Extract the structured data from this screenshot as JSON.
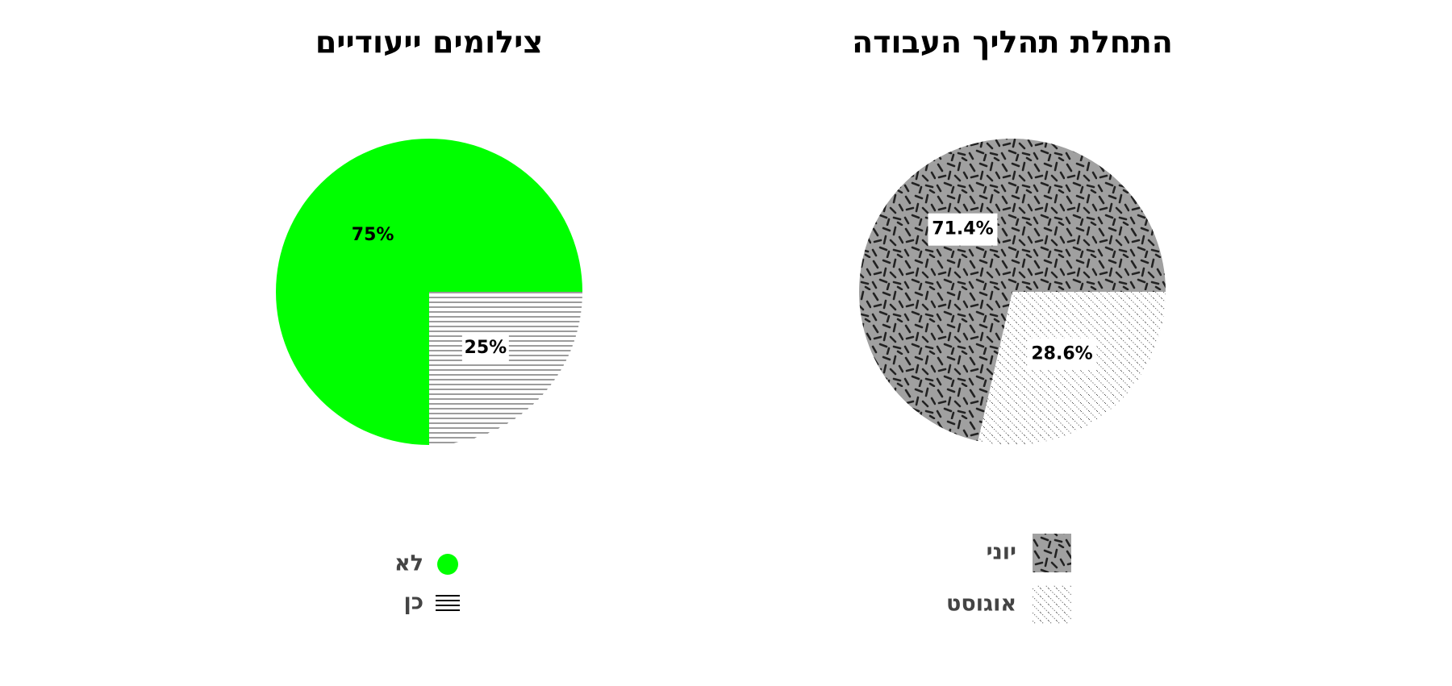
{
  "chart_data": [
    {
      "type": "pie",
      "title": "צילומים ייעודיים",
      "startangle": 0,
      "direction": "counterclockwise",
      "categories": [
        "לא",
        "כן"
      ],
      "values": [
        75,
        25
      ],
      "value_labels": [
        "75%",
        "25%"
      ],
      "colors": [
        "#00ff00",
        "#ffffff"
      ],
      "hatches": [
        "none",
        "horizontal-lines"
      ],
      "legend_marker": "circle"
    },
    {
      "type": "pie",
      "title": "התחלת תהליך העבודה",
      "startangle": 0,
      "direction": "counterclockwise",
      "categories": [
        "יוני",
        "אוגוסט"
      ],
      "values": [
        71.4,
        28.6
      ],
      "value_labels": [
        "71.4%",
        "28.6%"
      ],
      "colors": [
        "#a0a0a0",
        "#ffffff"
      ],
      "hatches": [
        "dashes",
        "dots"
      ],
      "legend_marker": "square"
    }
  ]
}
